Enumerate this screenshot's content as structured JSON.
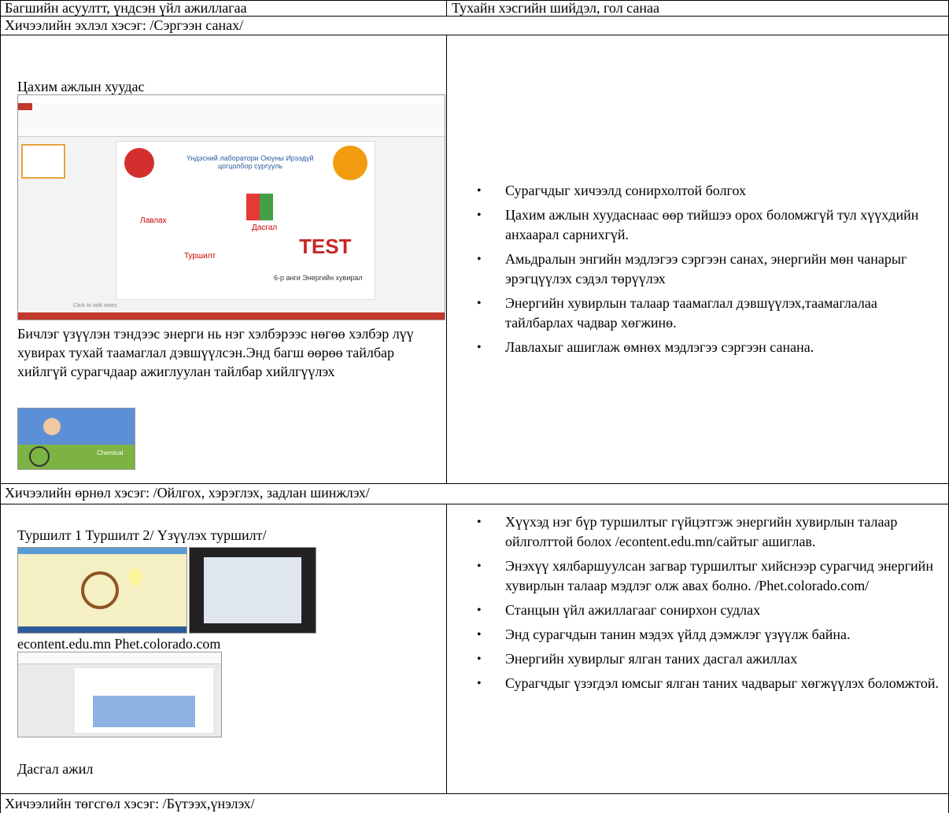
{
  "table": {
    "header": [
      "Багшийн асуултт, үндсэн үйл ажиллагаа",
      "Тухайн хэсгийн шийдэл, гол санаа"
    ],
    "sections": [
      "Хичээлийн эхлэл хэсэг: /Сэргээн санах/",
      "Хичээлийн өрнөл хэсэг: /Ойлгох, хэрэглэх, задлан шинжлэх/",
      "Хичээлийн төгсгөл хэсэг: /Бүтээх,үнэлэх/"
    ],
    "row1": {
      "left": {
        "heading": "Цахим ажлын хуудас",
        "slide": {
          "school": "Үндэсний лаборатори Оюуны Ирээдүй цогцолбор сургууль",
          "reference": "Лавлах",
          "exercise": "Дасгал",
          "experiment": "Туршилт",
          "test": "TEST",
          "topic": "6-р анги Энергийн хувирал",
          "notes": "Click to add notes"
        },
        "paragraph": "Бичлэг үзүүлэн тэндээс энерги нь нэг хэлбэрээс нөгөө хэлбэр лүү хувирах тухай таамаглал дэвшүүлсэн.Энд багш өөрөө тайлбар хийлгүй сурагчдаар ажиглуулан тайлбар хийлгүүлэх",
        "animation_label": "Chemical"
      },
      "right": [
        "Сурагчдыг хичээлд сонирхолтой болгох",
        "Цахим ажлын хуудаснаас өөр тийшээ орох боломжгүй тул хүүхдийн анхаарал сарнихгүй.",
        "Амьдралын энгийн мэдлэгээ сэргээн санах, энергийн мөн чанарыг эрэгцүүлэх сэдэл төрүүлэх",
        "Энергийн хувирлын талаар таамаглал дэвшүүлэх,таамаглалаа тайлбарлах чадвар хөгжинө.",
        "Лавлахыг ашиглаж өмнөх мэдлэгээ сэргээн санана."
      ]
    },
    "row2": {
      "left": {
        "heading": "Туршилт 1 Туршилт 2/ Үзүүлэх туршилт/",
        "caption": "econtent.edu.mn Phet.colorado.com",
        "footer": "Дасгал ажил"
      },
      "right": [
        "Хүүхэд нэг бүр туршилтыг гүйцэтгэж энергийн хувирлын талаар ойлголттой болох /econtent.edu.mn/сайтыг ашиглав.",
        "Энэхүү хялбаршуулсан загвар туршилтыг хийснээр сурагчид энергийн хувирлын талаар мэдлэг олж авах болно. /Phet.colorado.com/",
        "Станцын үйл ажиллагааг сонирхон судлах",
        "Энд сурагчдын танин мэдэх үйлд дэмжлэг үзүүлж байна.",
        "Энергийн хувирлыг ялган таних дасгал ажиллах",
        "Сурагчдыг үзэгдэл юмсыг ялган таних чадварыг хөгжүүлэх боломжтой."
      ]
    }
  }
}
